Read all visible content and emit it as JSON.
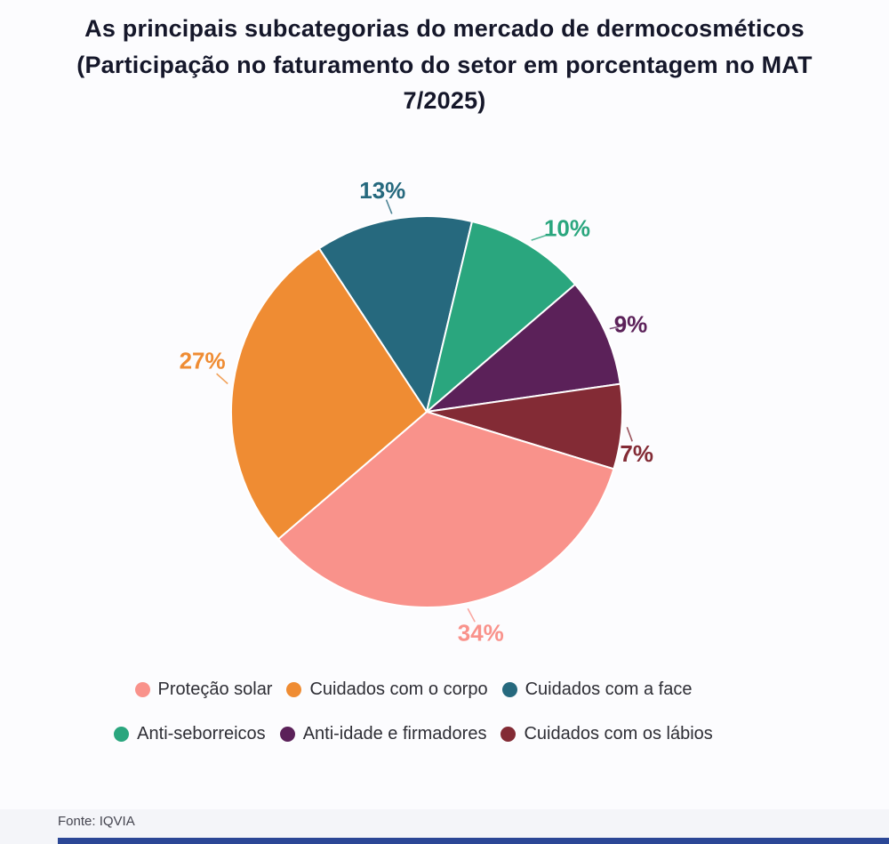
{
  "page": {
    "background": "#fcfcfe",
    "footer": {
      "source": "Fonte: IQVIA",
      "accent_bar_color": "#2b4796"
    }
  },
  "title": {
    "lines": [
      "As principais subcategorias do mercado de dermocosméticos",
      "(Participação no faturamento do setor em porcentagem no MAT",
      "7/2025)"
    ],
    "color": "#15172a"
  },
  "chart_data": {
    "type": "pie",
    "title": "As principais subcategorias do mercado de dermocosméticos (Participação no faturamento do setor em porcentagem no MAT 7/2025)",
    "unit": "%",
    "slices": [
      {
        "label": "Cuidados com a face",
        "value": 13,
        "color": "#26697e"
      },
      {
        "label": "Anti-seborreicos",
        "value": 10,
        "color": "#2aa67e"
      },
      {
        "label": "Anti-idade e firmadores",
        "value": 9,
        "color": "#5b2159"
      },
      {
        "label": "Cuidados com os lábios",
        "value": 7,
        "color": "#832b35"
      },
      {
        "label": "Proteção solar",
        "value": 34,
        "color": "#f9928b"
      },
      {
        "label": "Cuidados com o corpo",
        "value": 27,
        "color": "#ef8c33"
      }
    ],
    "legend_rows": [
      [
        "Proteção solar",
        "Cuidados com o corpo",
        "Cuidados com a face"
      ],
      [
        "Anti-seborreicos",
        "Anti-idade e firmadores",
        "Cuidados com os lábios"
      ]
    ],
    "layout": {
      "start_angle_deg": -33.4,
      "center": [
        480,
        313
      ],
      "radius": 220,
      "label_radius": 263,
      "label_nudges": [
        [
          -4,
          10
        ],
        [
          21,
          18
        ],
        [
          -10,
          10
        ],
        [
          -26,
          27
        ],
        [
          7,
          -9
        ],
        [
          8,
          -21
        ]
      ],
      "legend_position": "bottom",
      "grid": false
    }
  }
}
